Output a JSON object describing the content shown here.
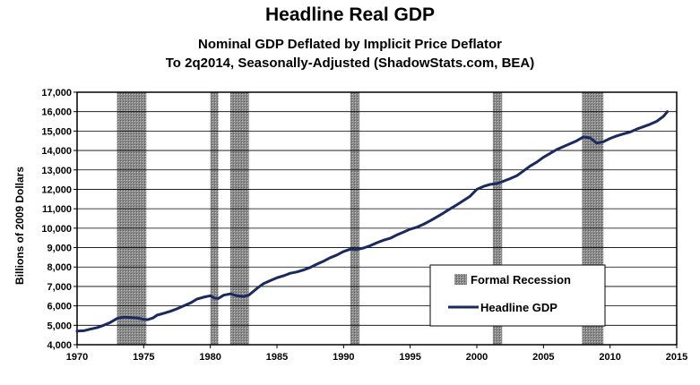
{
  "chart_data": {
    "type": "line",
    "title": "Headline Real GDP",
    "subtitle_1": "Nominal GDP Deflated by Implicit Price Deflator",
    "subtitle_2": "To 2q2014, Seasonally-Adjusted (ShadowStats.com, BEA)",
    "ylabel": "Billions of  2009 Dollars",
    "xlabel": "",
    "xlim": [
      1970,
      2015
    ],
    "ylim": [
      4000,
      17000
    ],
    "x_ticks": [
      1970,
      1975,
      1980,
      1985,
      1990,
      1995,
      2000,
      2005,
      2010,
      2015
    ],
    "x_tick_labels": [
      "1970",
      "1975",
      "1980",
      "1985",
      "1990",
      "1995",
      "2000",
      "2005",
      "2010",
      "2015"
    ],
    "y_ticks": [
      4000,
      5000,
      6000,
      7000,
      8000,
      9000,
      10000,
      11000,
      12000,
      13000,
      14000,
      15000,
      16000,
      17000
    ],
    "y_tick_labels": [
      "4,000",
      "5,000",
      "6,000",
      "7,000",
      "8,000",
      "9,000",
      "10,000",
      "11,000",
      "12,000",
      "13,000",
      "14,000",
      "15,000",
      "16,000",
      "17,000"
    ],
    "recessions": [
      {
        "start": 1973.0,
        "end": 1975.2
      },
      {
        "start": 1980.0,
        "end": 1980.6
      },
      {
        "start": 1981.5,
        "end": 1982.9
      },
      {
        "start": 1990.5,
        "end": 1991.2
      },
      {
        "start": 2001.2,
        "end": 2001.9
      },
      {
        "start": 2007.9,
        "end": 2009.5
      }
    ],
    "legend": {
      "position": "lower-right",
      "recession_label": "Formal Recession",
      "line_label": "Headline GDP"
    },
    "series": [
      {
        "name": "Headline GDP",
        "color": "#1b2a5e",
        "x": [
          1970.0,
          1970.5,
          1971.0,
          1971.5,
          1972.0,
          1972.5,
          1973.0,
          1973.5,
          1974.0,
          1974.5,
          1975.0,
          1975.3,
          1975.7,
          1976.0,
          1976.5,
          1977.0,
          1977.5,
          1978.0,
          1978.5,
          1979.0,
          1979.5,
          1980.0,
          1980.3,
          1980.6,
          1981.0,
          1981.5,
          1982.0,
          1982.5,
          1982.9,
          1983.5,
          1984.0,
          1984.5,
          1985.0,
          1985.5,
          1986.0,
          1986.5,
          1987.0,
          1987.5,
          1988.0,
          1988.5,
          1989.0,
          1989.5,
          1990.0,
          1990.5,
          1991.0,
          1991.5,
          1992.0,
          1992.5,
          1993.0,
          1993.5,
          1994.0,
          1994.5,
          1995.0,
          1995.5,
          1996.0,
          1996.5,
          1997.0,
          1997.5,
          1998.0,
          1998.5,
          1999.0,
          1999.5,
          2000.0,
          2000.5,
          2001.0,
          2001.5,
          2002.0,
          2002.5,
          2003.0,
          2003.5,
          2004.0,
          2004.5,
          2005.0,
          2005.5,
          2006.0,
          2006.5,
          2007.0,
          2007.5,
          2008.0,
          2008.5,
          2009.0,
          2009.5,
          2010.0,
          2010.5,
          2011.0,
          2011.5,
          2012.0,
          2012.5,
          2013.0,
          2013.5,
          2014.0,
          2014.3
        ],
        "values": [
          4700,
          4720,
          4800,
          4880,
          5000,
          5150,
          5350,
          5420,
          5400,
          5380,
          5310,
          5290,
          5380,
          5520,
          5620,
          5720,
          5850,
          6000,
          6150,
          6350,
          6450,
          6520,
          6400,
          6380,
          6550,
          6620,
          6520,
          6480,
          6560,
          6900,
          7150,
          7300,
          7450,
          7550,
          7680,
          7750,
          7850,
          7980,
          8150,
          8300,
          8480,
          8620,
          8800,
          8920,
          8900,
          8980,
          9100,
          9250,
          9380,
          9480,
          9650,
          9800,
          9950,
          10050,
          10200,
          10380,
          10580,
          10780,
          11000,
          11200,
          11420,
          11650,
          12000,
          12150,
          12250,
          12300,
          12420,
          12550,
          12700,
          12950,
          13200,
          13400,
          13650,
          13850,
          14050,
          14200,
          14350,
          14500,
          14700,
          14650,
          14380,
          14450,
          14620,
          14750,
          14850,
          14950,
          15100,
          15220,
          15350,
          15500,
          15750,
          16000
        ]
      }
    ]
  }
}
